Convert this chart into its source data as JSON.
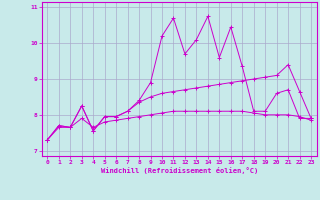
{
  "xlabel": "Windchill (Refroidissement éolien,°C)",
  "xlim": [
    -0.5,
    23.5
  ],
  "ylim": [
    6.85,
    11.15
  ],
  "yticks": [
    7,
    8,
    9,
    10,
    11
  ],
  "xticks": [
    0,
    1,
    2,
    3,
    4,
    5,
    6,
    7,
    8,
    9,
    10,
    11,
    12,
    13,
    14,
    15,
    16,
    17,
    18,
    19,
    20,
    21,
    22,
    23
  ],
  "background_color": "#c8eaea",
  "grid_color": "#aaaacc",
  "line_color": "#cc00cc",
  "line1_x": [
    0,
    1,
    2,
    3,
    4,
    5,
    6,
    7,
    8,
    9,
    10,
    11,
    12,
    13,
    14,
    15,
    16,
    17,
    18,
    19,
    20,
    21,
    22,
    23
  ],
  "line1_y": [
    7.3,
    7.7,
    7.65,
    8.25,
    7.55,
    7.95,
    7.95,
    8.1,
    8.4,
    8.9,
    10.2,
    10.7,
    9.7,
    10.1,
    10.75,
    9.6,
    10.45,
    9.35,
    8.1,
    8.1,
    8.6,
    8.7,
    7.9,
    7.9
  ],
  "line2_x": [
    0,
    1,
    2,
    3,
    4,
    5,
    6,
    7,
    8,
    9,
    10,
    11,
    12,
    13,
    14,
    15,
    16,
    17,
    18,
    19,
    20,
    21,
    22,
    23
  ],
  "line2_y": [
    7.3,
    7.7,
    7.65,
    8.25,
    7.55,
    7.95,
    7.95,
    8.1,
    8.35,
    8.5,
    8.6,
    8.65,
    8.7,
    8.75,
    8.8,
    8.85,
    8.9,
    8.95,
    9.0,
    9.05,
    9.1,
    9.4,
    8.65,
    7.9
  ],
  "line3_x": [
    0,
    1,
    2,
    3,
    4,
    5,
    6,
    7,
    8,
    9,
    10,
    11,
    12,
    13,
    14,
    15,
    16,
    17,
    18,
    19,
    20,
    21,
    22,
    23
  ],
  "line3_y": [
    7.3,
    7.65,
    7.65,
    7.9,
    7.65,
    7.8,
    7.85,
    7.9,
    7.95,
    8.0,
    8.05,
    8.1,
    8.1,
    8.1,
    8.1,
    8.1,
    8.1,
    8.1,
    8.05,
    8.0,
    8.0,
    8.0,
    7.95,
    7.85
  ]
}
